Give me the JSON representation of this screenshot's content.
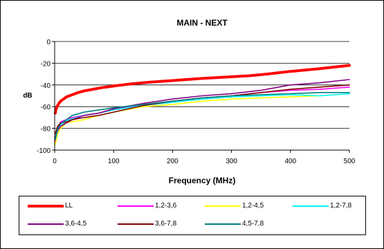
{
  "chart_data": {
    "type": "line",
    "title": "MAIN - NEXT",
    "xlabel": "Frequency (MHz)",
    "ylabel": "dB",
    "xlim": [
      0,
      500
    ],
    "ylim": [
      -100,
      0
    ],
    "x_ticks": [
      "0",
      "100",
      "200",
      "300",
      "400",
      "500"
    ],
    "y_ticks": [
      "0",
      "-20",
      "-40",
      "-60",
      "-80",
      "-100"
    ],
    "grid": "horizontal",
    "legend_position": "bottom",
    "series": [
      {
        "name": "LL",
        "color": "#ff0000",
        "x": [
          1,
          2,
          4,
          6,
          8,
          10,
          15,
          20,
          30,
          40,
          50,
          60,
          80,
          100,
          130,
          160,
          200,
          250,
          300,
          330,
          360,
          400,
          450,
          500
        ],
        "values": [
          -66,
          -63,
          -60,
          -58,
          -56.5,
          -55,
          -53,
          -51,
          -49,
          -47,
          -45.5,
          -44.5,
          -42.5,
          -41,
          -39,
          -37.5,
          -36,
          -34,
          -32.5,
          -31.5,
          -30,
          -27.5,
          -25,
          -22
        ]
      },
      {
        "name": "1,2-3,6",
        "color": "#ff00ff",
        "x": [
          1,
          5,
          10,
          20,
          30,
          50,
          75,
          100,
          150,
          200,
          250,
          300,
          350,
          400,
          450,
          500
        ],
        "values": [
          -92,
          -80,
          -74,
          -72,
          -70,
          -68,
          -66,
          -62,
          -58,
          -55,
          -52,
          -50,
          -47,
          -45,
          -44,
          -42
        ]
      },
      {
        "name": "1,2-4,5",
        "color": "#ffff00",
        "x": [
          1,
          5,
          10,
          20,
          30,
          50,
          75,
          100,
          150,
          200,
          250,
          300,
          350,
          400,
          450,
          500
        ],
        "values": [
          -95,
          -85,
          -80,
          -75,
          -74,
          -72,
          -68,
          -65,
          -60,
          -58,
          -55,
          -53,
          -52,
          -51,
          -50,
          -48
        ]
      },
      {
        "name": "1,2-7,8",
        "color": "#00ffff",
        "x": [
          1,
          5,
          10,
          20,
          30,
          50,
          75,
          100,
          150,
          200,
          250,
          300,
          350,
          400,
          450,
          500
        ],
        "values": [
          -90,
          -82,
          -78,
          -73,
          -71,
          -68,
          -66,
          -63,
          -59,
          -56,
          -53,
          -51,
          -50,
          -49,
          -50,
          -48
        ]
      },
      {
        "name": "3,6-4,5",
        "color": "#800080",
        "x": [
          1,
          5,
          10,
          20,
          30,
          50,
          75,
          100,
          150,
          200,
          250,
          300,
          350,
          400,
          450,
          500
        ],
        "values": [
          -88,
          -82,
          -78,
          -75,
          -72,
          -68,
          -66,
          -62,
          -57,
          -53,
          -50,
          -48,
          -45,
          -40,
          -38,
          -35
        ]
      },
      {
        "name": "3,6-7,8",
        "color": "#800000",
        "x": [
          1,
          5,
          10,
          20,
          30,
          50,
          75,
          100,
          150,
          200,
          250,
          300,
          350,
          400,
          450,
          500
        ],
        "values": [
          -85,
          -78,
          -75,
          -74,
          -72,
          -70,
          -68,
          -65,
          -59,
          -55,
          -52,
          -50,
          -47,
          -44,
          -42,
          -40
        ]
      },
      {
        "name": "4,5-7,8",
        "color": "#008080",
        "x": [
          1,
          5,
          10,
          20,
          30,
          50,
          75,
          100,
          150,
          200,
          250,
          300,
          350,
          400,
          450,
          500
        ],
        "values": [
          -90,
          -80,
          -76,
          -72,
          -68,
          -65,
          -63,
          -61,
          -58,
          -55,
          -52,
          -50,
          -49,
          -48,
          -47,
          -47
        ]
      }
    ]
  }
}
